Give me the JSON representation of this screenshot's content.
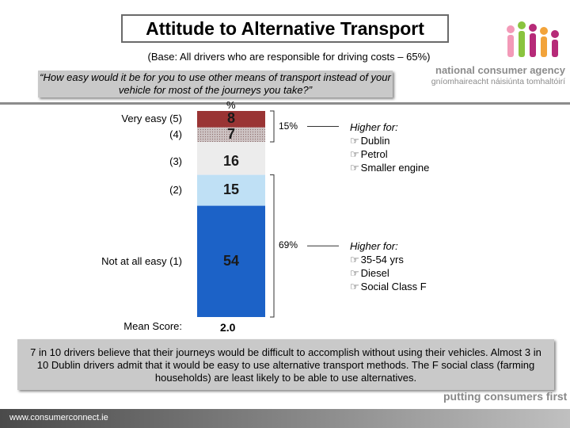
{
  "header": {
    "title": "Attitude to Alternative Transport",
    "base": "(Base:  All drivers who are responsible for driving costs – 65%)",
    "question": "“How easy would it be for you to use other means of transport instead of your vehicle for most of the journeys you take?”"
  },
  "logo": {
    "name": "national consumer agency",
    "irish": "gníomhaireacht náisiúnta tomhaltóirí"
  },
  "chart_data": {
    "type": "bar",
    "unit": "%",
    "categories": [
      "Very easy (5)",
      "(4)",
      "(3)",
      "(2)",
      "Not at all easy  (1)"
    ],
    "values": [
      8,
      7,
      16,
      15,
      54
    ],
    "colors": [
      "#9a3434",
      "#c8bcbc",
      "#ececec",
      "#bfe0f5",
      "#1c62c7"
    ],
    "mean_label": "Mean Score:",
    "mean_value": "2.0",
    "groups": [
      {
        "value": "15%",
        "header": "Higher for:",
        "items": [
          "Dublin",
          "Petrol",
          "Smaller engine"
        ]
      },
      {
        "value": "69%",
        "header": "Higher for:",
        "items": [
          "35-54 yrs",
          "Diesel",
          "Social Class F"
        ]
      }
    ]
  },
  "summary": "7 in 10 drivers believe that their journeys would be difficult to accomplish without using their vehicles.  Almost 3 in 10 Dublin drivers admit that it would be easy to use alternative transport methods. The F social class (farming households) are least likely to be able to use alternatives.",
  "tagline": "putting consumers first",
  "footer": "www.consumerconnect.ie",
  "icons": {
    "bullet": "hand-pointer-icon"
  }
}
